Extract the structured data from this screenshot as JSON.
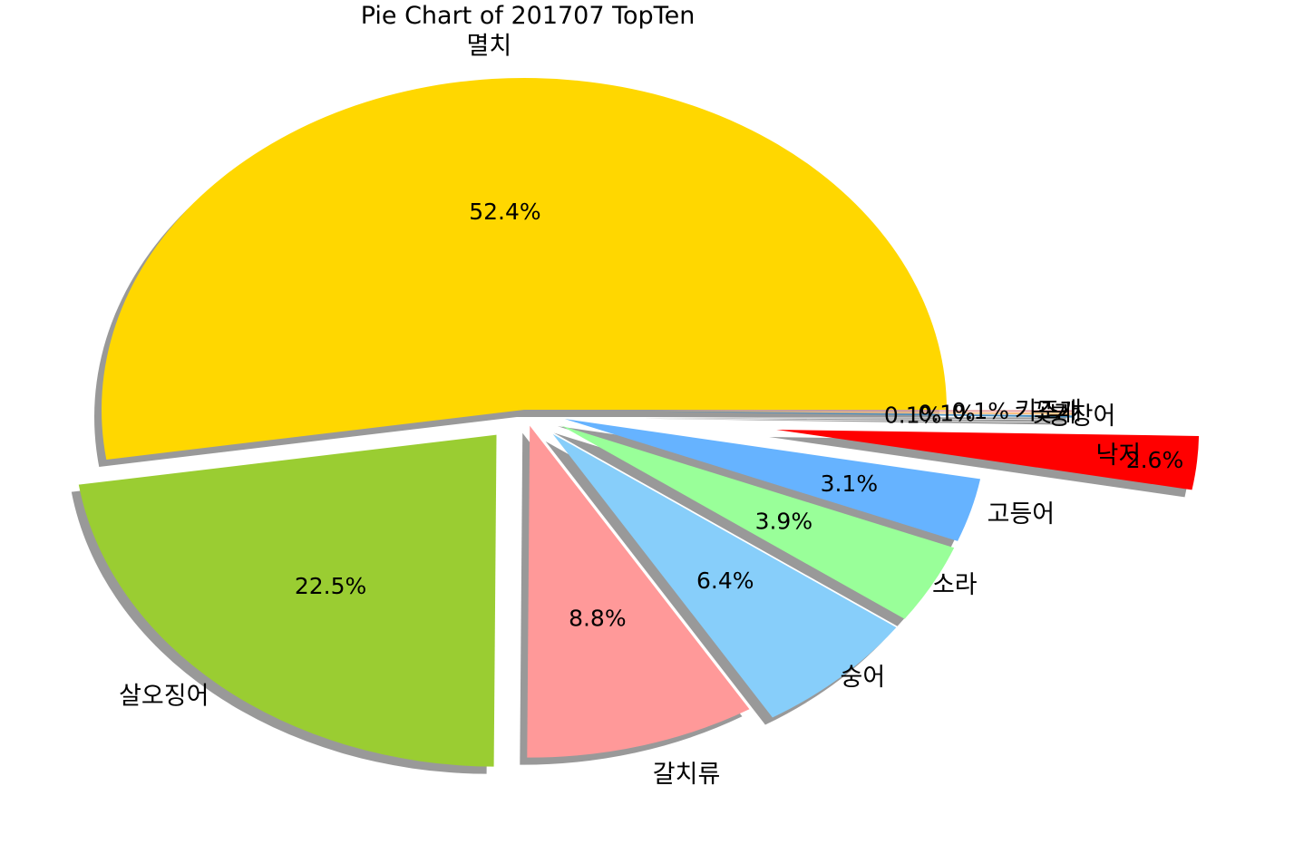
{
  "chart_data": {
    "type": "pie",
    "title": "Pie Chart of 201707 TopTen",
    "slices": [
      {
        "label": "멸치",
        "percent": 52.4,
        "pct_label": "52.4%",
        "color": "#FFD700"
      },
      {
        "label": "살오징어",
        "percent": 22.5,
        "pct_label": "22.5%",
        "color": "#9ACD32"
      },
      {
        "label": "갈치류",
        "percent": 8.8,
        "pct_label": "8.8%",
        "color": "#FF9999"
      },
      {
        "label": "숭어",
        "percent": 6.4,
        "pct_label": "6.4%",
        "color": "#87CEFA"
      },
      {
        "label": "소라",
        "percent": 3.9,
        "pct_label": "3.9%",
        "color": "#99FF99"
      },
      {
        "label": "고등어",
        "percent": 3.1,
        "pct_label": "3.1%",
        "color": "#66B3FF"
      },
      {
        "label": "낙지",
        "percent": 2.6,
        "pct_label": "2.6%",
        "color": "#FF0000"
      },
      {
        "label": "붕장어",
        "percent": 0.1,
        "pct_label": "0.1%",
        "color": "#4A90C2"
      },
      {
        "label": "꽃게",
        "percent": 0.1,
        "pct_label": "0.1%",
        "color": "#FFC080"
      },
      {
        "label": "키조개",
        "percent": 0.1,
        "pct_label": "0.1%",
        "color": "#E8A0A0"
      }
    ],
    "shadow": true,
    "explode": true
  }
}
